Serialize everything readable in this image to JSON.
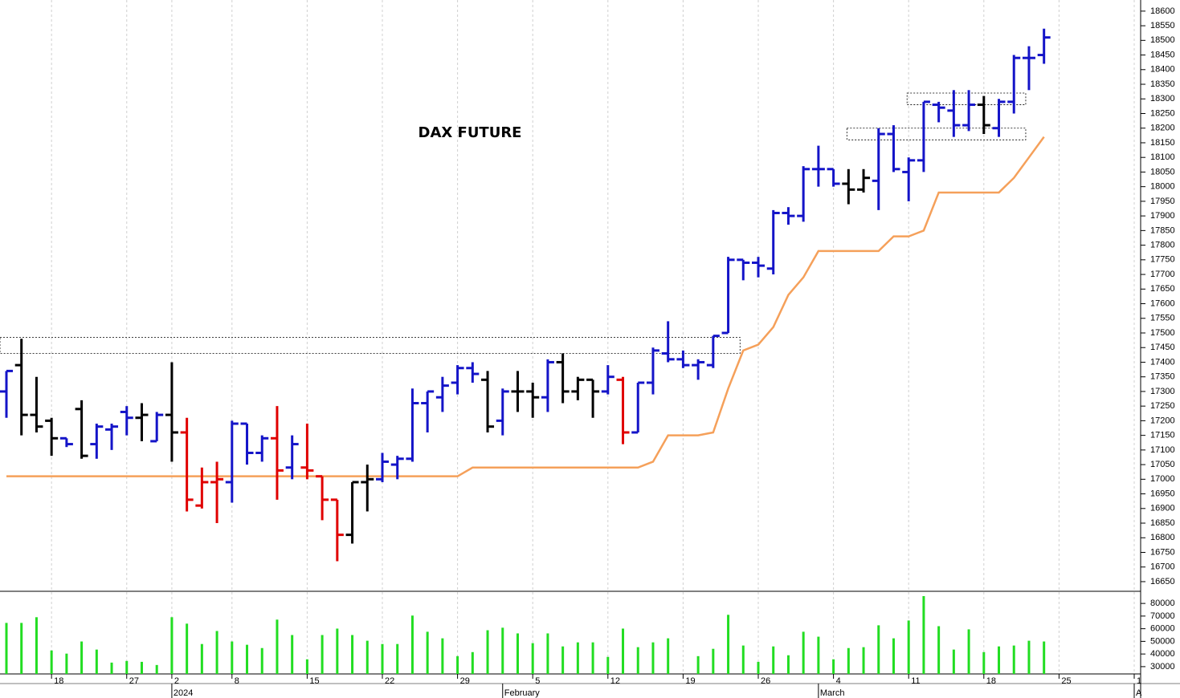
{
  "chart_data": [
    {
      "type": "ohlc",
      "title": "DAX FUTURE",
      "categories": [
        null,
        null,
        null,
        "18",
        null,
        null,
        null,
        null,
        "27",
        null,
        null,
        "2",
        null,
        null,
        null,
        "8",
        null,
        null,
        null,
        null,
        "15",
        null,
        null,
        null,
        null,
        "22",
        null,
        null,
        null,
        null,
        "29",
        null,
        null,
        null,
        null,
        "5",
        null,
        null,
        null,
        null,
        "12",
        null,
        null,
        null,
        null,
        "19",
        null,
        null,
        null,
        null,
        "26",
        null,
        null,
        null,
        null,
        "4",
        null,
        null,
        null,
        null,
        "11",
        null,
        null,
        null,
        null,
        "18",
        null,
        null,
        null,
        null,
        "25",
        null,
        null,
        null,
        null,
        "1"
      ],
      "month_labels": [
        null,
        null,
        null,
        null,
        null,
        null,
        null,
        null,
        null,
        null,
        null,
        "2024",
        null,
        null,
        null,
        null,
        null,
        null,
        null,
        null,
        null,
        null,
        null,
        null,
        null,
        null,
        null,
        null,
        null,
        null,
        null,
        null,
        null,
        "February",
        null,
        null,
        null,
        null,
        null,
        null,
        null,
        null,
        null,
        null,
        null,
        null,
        null,
        null,
        null,
        null,
        null,
        null,
        null,
        null,
        "March",
        null,
        null,
        null,
        null,
        null,
        null,
        null,
        null,
        null,
        null,
        null,
        null,
        null,
        null,
        null,
        null,
        null,
        null,
        null,
        null,
        "A"
      ],
      "open": [
        17300,
        17390,
        17220,
        17200,
        17140,
        17240,
        17120,
        17170,
        17230,
        17210,
        17130,
        17220,
        17160,
        16910,
        16990,
        16990,
        17190,
        17090,
        17140,
        17040,
        17040,
        17010,
        16930,
        16810,
        16990,
        17000,
        17050,
        17070,
        17260,
        17280,
        17330,
        17380,
        17340,
        17200,
        17300,
        17300,
        17280,
        17400,
        17300,
        17340,
        17300,
        17340,
        17160,
        17330,
        17430,
        17410,
        17390,
        17390,
        17500,
        17750,
        17740,
        17720,
        17910,
        17900,
        18060,
        18060,
        18010,
        17990,
        18020,
        18180,
        18050,
        18090,
        18280,
        18260,
        18210,
        18280,
        18200,
        18290,
        18440,
        18450,
        null,
        null,
        null,
        null,
        null,
        null
      ],
      "high": [
        17370,
        17480,
        17350,
        17210,
        17140,
        17270,
        17190,
        17190,
        17250,
        17260,
        17230,
        17400,
        17210,
        17040,
        17060,
        17200,
        17190,
        17150,
        17250,
        17150,
        17190,
        17010,
        16930,
        16990,
        17050,
        17090,
        17080,
        17310,
        17300,
        17350,
        17390,
        17400,
        17370,
        17310,
        17370,
        17330,
        17410,
        17430,
        17350,
        17340,
        17390,
        17350,
        17330,
        17450,
        17540,
        17440,
        17410,
        17490,
        17760,
        17750,
        17760,
        17920,
        17930,
        18070,
        18140,
        18060,
        18060,
        18060,
        18200,
        18210,
        18100,
        18290,
        18290,
        18330,
        18330,
        18310,
        18300,
        18450,
        18480,
        18540,
        null,
        null,
        null,
        null,
        null,
        null
      ],
      "low": [
        17210,
        17150,
        17160,
        17080,
        17110,
        17070,
        17070,
        17100,
        17150,
        17130,
        17130,
        17060,
        16890,
        16900,
        16850,
        16920,
        17050,
        17060,
        16930,
        17000,
        17000,
        16860,
        16720,
        16780,
        16890,
        16990,
        17000,
        17060,
        17160,
        17230,
        17290,
        17330,
        17160,
        17150,
        17230,
        17210,
        17230,
        17260,
        17270,
        17210,
        17290,
        17120,
        17160,
        17290,
        17400,
        17380,
        17340,
        17380,
        17500,
        17680,
        17690,
        17700,
        17870,
        17880,
        18000,
        18000,
        17940,
        17980,
        17920,
        18050,
        17950,
        18050,
        18220,
        18170,
        18190,
        18180,
        18170,
        18250,
        18330,
        18420,
        null,
        null,
        null,
        null,
        null,
        null
      ],
      "close": [
        17370,
        17220,
        17180,
        17140,
        17120,
        17080,
        17180,
        17180,
        17210,
        17220,
        17220,
        17160,
        16930,
        16990,
        17000,
        17190,
        17090,
        17140,
        17030,
        17120,
        17030,
        16930,
        16810,
        16990,
        17000,
        17060,
        17070,
        17260,
        17300,
        17320,
        17380,
        17360,
        17180,
        17300,
        17300,
        17280,
        17400,
        17300,
        17340,
        17300,
        17350,
        17160,
        17330,
        17440,
        17410,
        17390,
        17400,
        17490,
        17750,
        17740,
        17730,
        17910,
        17900,
        18060,
        18060,
        18010,
        17990,
        18030,
        18180,
        18060,
        18090,
        18290,
        18270,
        18210,
        18280,
        18210,
        18290,
        18440,
        18440,
        18510,
        null,
        null,
        null,
        null,
        null,
        null
      ],
      "colors": [
        "#1414c8",
        "#000000",
        "#000000",
        "#000000",
        "#1414c8",
        "#000000",
        "#1414c8",
        "#1414c8",
        "#1414c8",
        "#000000",
        "#1414c8",
        "#000000",
        "#e00000",
        "#e00000",
        "#e00000",
        "#1414c8",
        "#1414c8",
        "#1414c8",
        "#e00000",
        "#1414c8",
        "#e00000",
        "#e00000",
        "#e00000",
        "#000000",
        "#000000",
        "#1414c8",
        "#1414c8",
        "#1414c8",
        "#1414c8",
        "#1414c8",
        "#1414c8",
        "#1414c8",
        "#000000",
        "#1414c8",
        "#000000",
        "#000000",
        "#1414c8",
        "#000000",
        "#000000",
        "#000000",
        "#1414c8",
        "#e00000",
        "#1414c8",
        "#1414c8",
        "#1414c8",
        "#1414c8",
        "#1414c8",
        "#1414c8",
        "#1414c8",
        "#1414c8",
        "#1414c8",
        "#1414c8",
        "#1414c8",
        "#1414c8",
        "#1414c8",
        "#1414c8",
        "#000000",
        "#000000",
        "#1414c8",
        "#1414c8",
        "#1414c8",
        "#1414c8",
        "#1414c8",
        "#1414c8",
        "#1414c8",
        "#000000",
        "#1414c8",
        "#1414c8",
        "#1414c8",
        "#1414c8",
        null,
        null,
        null,
        null,
        null,
        null
      ],
      "stop": {
        "color": "#f5a05a",
        "values": [
          17010,
          17010,
          17010,
          17010,
          17010,
          17010,
          17010,
          17010,
          17010,
          17010,
          17010,
          17010,
          17010,
          17010,
          17010,
          17010,
          17010,
          17010,
          17010,
          17010,
          17010,
          17010,
          17010,
          17010,
          17010,
          17010,
          17010,
          17010,
          17010,
          17010,
          17010,
          17040,
          17040,
          17040,
          17040,
          17040,
          17040,
          17040,
          17040,
          17040,
          17040,
          17040,
          17040,
          17060,
          17150,
          17150,
          17150,
          17160,
          17310,
          17440,
          17460,
          17520,
          17630,
          17690,
          17780,
          17780,
          17780,
          17780,
          17780,
          17830,
          17830,
          17850,
          17980,
          17980,
          17980,
          17980,
          17980,
          18030,
          18100,
          18170,
          null,
          null,
          null,
          null,
          null,
          null
        ]
      },
      "zones": [
        {
          "from": 0,
          "to": 49,
          "low": 17430,
          "high": 17485
        },
        {
          "from": 60,
          "to": 68,
          "low": 18280,
          "high": 18320
        },
        {
          "from": 56,
          "to": 68,
          "low": 18160,
          "high": 18200
        }
      ],
      "ylim": [
        16617,
        18638
      ],
      "yticks": [
        16650,
        16700,
        16750,
        16800,
        16850,
        16900,
        16950,
        17000,
        17050,
        17100,
        17150,
        17200,
        17250,
        17300,
        17350,
        17400,
        17450,
        17500,
        17550,
        17600,
        17650,
        17700,
        17750,
        17800,
        17850,
        17900,
        17950,
        18000,
        18050,
        18100,
        18150,
        18200,
        18250,
        18300,
        18350,
        18400,
        18450,
        18500,
        18550,
        18600
      ],
      "grid": true
    },
    {
      "type": "bar",
      "color": "#22dd22",
      "values": [
        64600,
        64600,
        69100,
        42800,
        40300,
        49900,
        43500,
        33200,
        34500,
        33800,
        31300,
        69100,
        64000,
        47900,
        58200,
        49900,
        47300,
        44700,
        67200,
        55000,
        35800,
        55000,
        60100,
        55000,
        50500,
        47900,
        47900,
        70400,
        57600,
        52400,
        38300,
        41500,
        58800,
        60800,
        56300,
        48600,
        56300,
        46000,
        49200,
        49200,
        37700,
        60100,
        45400,
        49200,
        52400,
        null,
        38300,
        44100,
        71000,
        46700,
        33800,
        46000,
        39000,
        57600,
        53700,
        35800,
        44700,
        45400,
        62700,
        52400,
        66500,
        85800,
        62000,
        43500,
        59500,
        41500,
        46000,
        46700,
        50500,
        49900,
        null,
        null,
        null,
        null,
        null,
        null
      ],
      "ylim": [
        24230,
        89600
      ],
      "yticks": [
        30000,
        40000,
        50000,
        60000,
        70000,
        80000
      ]
    }
  ]
}
